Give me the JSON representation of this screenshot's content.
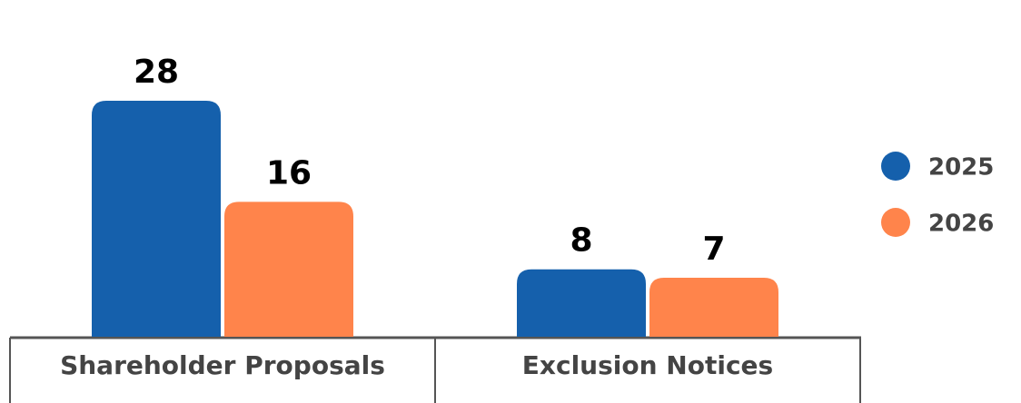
{
  "chart_data": {
    "type": "bar",
    "categories": [
      "Shareholder Proposals",
      "Exclusion Notices"
    ],
    "series": [
      {
        "name": "2025",
        "color": "#1560ac",
        "values": [
          28,
          8
        ]
      },
      {
        "name": "2026",
        "color": "#ff844b",
        "values": [
          16,
          7
        ]
      }
    ],
    "legend": "right"
  }
}
